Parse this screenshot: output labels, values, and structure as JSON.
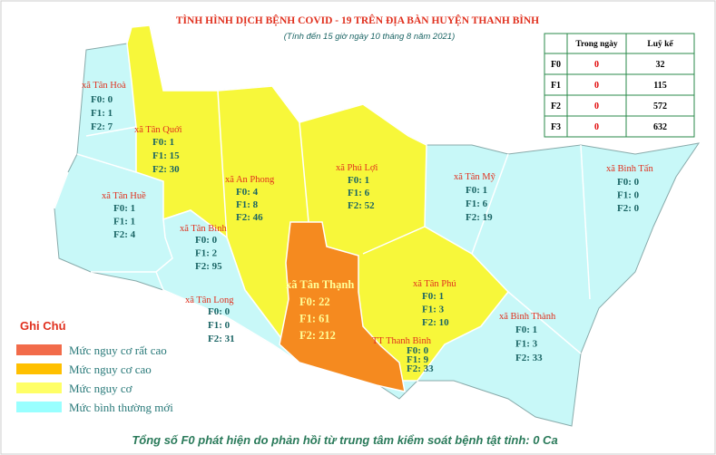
{
  "header": {
    "title": "TÌNH HÌNH DỊCH BỆNH COVID - 19 TRÊN ĐỊA BÀN HUYỆN THANH BÌNH",
    "subtitle": "(Tính đến 15 giờ ngày 10 tháng 8 năm 2021)"
  },
  "table": {
    "columns": [
      "Trong ngày",
      "Luỹ kế"
    ],
    "rows": [
      [
        "F0",
        0,
        32
      ],
      [
        "F1",
        0,
        115
      ],
      [
        "F2",
        0,
        572
      ],
      [
        "F3",
        0,
        632
      ]
    ]
  },
  "regions": [
    {
      "name": "xã Tân Hoà",
      "lines": [
        "F0: 0",
        "F1: 1",
        "F2: 7"
      ]
    },
    {
      "name": "xã Tân Quới",
      "lines": [
        "F0: 1",
        "F1: 15",
        "F2: 30"
      ]
    },
    {
      "name": "xã Tân Huề",
      "lines": [
        "F0: 1",
        "F1: 1",
        "F2: 4"
      ]
    },
    {
      "name": "xã An Phong",
      "lines": [
        "F0: 4",
        "F1: 8",
        "F2: 46"
      ]
    },
    {
      "name": "xã Phú Lợi",
      "lines": [
        "F0: 1",
        "F1: 6",
        "F2: 52"
      ]
    },
    {
      "name": "xã Tân Mỹ",
      "lines": [
        "F0: 1",
        "F1: 6",
        "F2: 19"
      ]
    },
    {
      "name": "xã Bình Tấn",
      "lines": [
        "F0: 0",
        "F1: 0",
        "F2: 0"
      ]
    },
    {
      "name": "xã Tân Bình",
      "lines": [
        "F0: 0",
        "F1: 2",
        "F2: 95"
      ]
    },
    {
      "name": "xã Tân Long",
      "lines": [
        "F0: 0",
        "F1: 0",
        "F2: 31"
      ]
    },
    {
      "name": "xã Tân Thạnh",
      "lines": [
        "F0: 22",
        "F1: 61",
        "F2: 212"
      ]
    },
    {
      "name": "xã Tân Phú",
      "lines": [
        "F0: 1",
        "F1: 3",
        "F2: 10"
      ]
    },
    {
      "name": "TT Thanh Bình",
      "lines": [
        "F0: 0",
        "F1: 9",
        "F2: 33"
      ]
    },
    {
      "name": "xã Bình Thành",
      "lines": [
        "F0: 1",
        "F1: 3",
        "F2: 33"
      ]
    }
  ],
  "legend": {
    "title": "Ghi Chú",
    "items": [
      {
        "label": "Mức  nguy cơ rất cao",
        "color": "#f26b4a"
      },
      {
        "label": "Mức  nguy cơ cao",
        "color": "#ffc000"
      },
      {
        "label": "Mức  nguy cơ",
        "color": "#ffff66"
      },
      {
        "label": "Mức  bình thường mới",
        "color": "#99ffff"
      }
    ]
  },
  "footer": "Tổng số F0 phát hiện do phản hồi từ trung tâm kiểm soát bệnh tật tỉnh: 0 Ca"
}
